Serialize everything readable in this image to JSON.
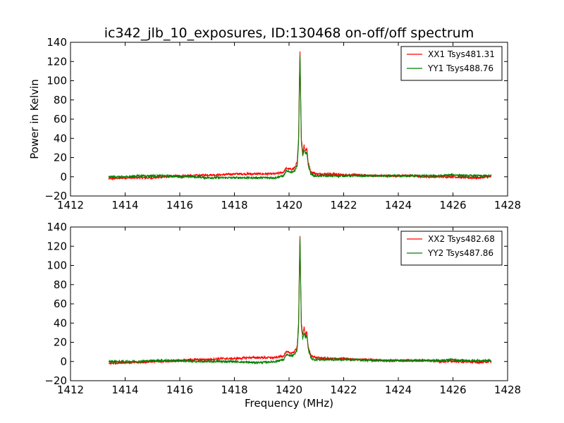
{
  "figure": {
    "title": "ic342_jlb_10_exposures, ID:130468 on-off/off spectrum"
  },
  "chart_data": [
    {
      "type": "line",
      "title": "ic342_jlb_10_exposures, ID:130468 on-off/off spectrum",
      "xlabel": "",
      "ylabel": "Power in Kelvin",
      "xlim": [
        1412,
        1428
      ],
      "ylim": [
        -20,
        140
      ],
      "xticks": [
        "1412",
        "1414",
        "1416",
        "1418",
        "1420",
        "1422",
        "1424",
        "1426",
        "1428"
      ],
      "yticks": [
        "−20",
        "0",
        "20",
        "40",
        "60",
        "80",
        "100",
        "120",
        "140"
      ],
      "grid": false,
      "legend": "top-right",
      "series": [
        {
          "name": "XX1 Tsys481.31",
          "color": "#ff0000",
          "x": [
            1413.4,
            1414.0,
            1414.5,
            1415.0,
            1415.5,
            1416.0,
            1416.5,
            1417.0,
            1417.5,
            1418.0,
            1418.5,
            1419.0,
            1419.5,
            1419.8,
            1419.9,
            1420.0,
            1420.1,
            1420.2,
            1420.3,
            1420.35,
            1420.38,
            1420.4,
            1420.42,
            1420.45,
            1420.5,
            1420.55,
            1420.6,
            1420.65,
            1420.7,
            1420.8,
            1420.9,
            1421.0,
            1421.5,
            1422.0,
            1422.5,
            1423.0,
            1423.5,
            1424.0,
            1424.5,
            1425.0,
            1425.5,
            1426.0,
            1426.5,
            1427.0,
            1427.4
          ],
          "y": [
            -2,
            -1,
            -1,
            -1,
            0,
            1,
            1,
            2,
            2,
            3,
            3,
            3,
            3,
            5,
            9,
            8,
            8,
            9,
            15,
            40,
            100,
            132,
            95,
            40,
            25,
            33,
            27,
            30,
            15,
            5,
            4,
            3,
            3,
            2,
            2,
            1,
            1,
            1,
            1,
            0,
            0,
            0,
            -1,
            -1,
            0
          ]
        },
        {
          "name": "YY1 Tsys488.76",
          "color": "#008000",
          "x": [
            1413.4,
            1414.0,
            1414.5,
            1415.0,
            1415.5,
            1416.0,
            1416.5,
            1417.0,
            1417.5,
            1418.0,
            1418.5,
            1419.0,
            1419.5,
            1419.8,
            1419.9,
            1420.0,
            1420.1,
            1420.2,
            1420.3,
            1420.35,
            1420.38,
            1420.4,
            1420.42,
            1420.45,
            1420.5,
            1420.55,
            1420.6,
            1420.65,
            1420.7,
            1420.8,
            1420.9,
            1421.0,
            1421.5,
            1422.0,
            1422.5,
            1423.0,
            1423.5,
            1424.0,
            1424.5,
            1425.0,
            1425.5,
            1426.0,
            1426.5,
            1427.0,
            1427.4
          ],
          "y": [
            0,
            0,
            1,
            1,
            1,
            0,
            0,
            -1,
            -1,
            -1,
            -1,
            -1,
            -1,
            1,
            6,
            5,
            5,
            6,
            12,
            35,
            95,
            127,
            90,
            35,
            22,
            28,
            23,
            26,
            12,
            3,
            1,
            1,
            1,
            1,
            1,
            1,
            1,
            1,
            1,
            1,
            1,
            2,
            1,
            1,
            1
          ]
        }
      ]
    },
    {
      "type": "line",
      "title": "",
      "xlabel": "Frequency (MHz)",
      "ylabel": "",
      "xlim": [
        1412,
        1428
      ],
      "ylim": [
        -20,
        140
      ],
      "xticks": [
        "1412",
        "1414",
        "1416",
        "1418",
        "1420",
        "1422",
        "1424",
        "1426",
        "1428"
      ],
      "yticks": [
        "−20",
        "0",
        "20",
        "40",
        "60",
        "80",
        "100",
        "120",
        "140"
      ],
      "grid": false,
      "legend": "top-right",
      "series": [
        {
          "name": "XX2 Tsys482.68",
          "color": "#ff0000",
          "x": [
            1413.4,
            1414.0,
            1414.5,
            1415.0,
            1415.5,
            1416.0,
            1416.5,
            1417.0,
            1417.5,
            1418.0,
            1418.5,
            1419.0,
            1419.5,
            1419.8,
            1419.9,
            1420.0,
            1420.1,
            1420.2,
            1420.3,
            1420.35,
            1420.38,
            1420.4,
            1420.42,
            1420.45,
            1420.5,
            1420.55,
            1420.6,
            1420.65,
            1420.7,
            1420.8,
            1420.9,
            1421.0,
            1421.5,
            1422.0,
            1422.5,
            1423.0,
            1423.5,
            1424.0,
            1424.5,
            1425.0,
            1425.5,
            1426.0,
            1426.5,
            1427.0,
            1427.4
          ],
          "y": [
            -2,
            -1,
            -1,
            0,
            0,
            1,
            2,
            2,
            3,
            3,
            4,
            4,
            4,
            6,
            10,
            9,
            9,
            10,
            16,
            40,
            100,
            132,
            95,
            40,
            27,
            35,
            28,
            31,
            15,
            6,
            5,
            4,
            3,
            3,
            2,
            2,
            1,
            1,
            1,
            1,
            0,
            0,
            0,
            -1,
            0
          ]
        },
        {
          "name": "YY2 Tsys487.86",
          "color": "#008000",
          "x": [
            1413.4,
            1414.0,
            1414.5,
            1415.0,
            1415.5,
            1416.0,
            1416.5,
            1417.0,
            1417.5,
            1418.0,
            1418.5,
            1419.0,
            1419.5,
            1419.8,
            1419.9,
            1420.0,
            1420.1,
            1420.2,
            1420.3,
            1420.35,
            1420.38,
            1420.4,
            1420.42,
            1420.45,
            1420.5,
            1420.55,
            1420.6,
            1420.65,
            1420.7,
            1420.8,
            1420.9,
            1421.0,
            1421.5,
            1422.0,
            1422.5,
            1423.0,
            1423.5,
            1424.0,
            1424.5,
            1425.0,
            1425.5,
            1426.0,
            1426.5,
            1427.0,
            1427.4
          ],
          "y": [
            0,
            0,
            0,
            1,
            1,
            1,
            0,
            0,
            0,
            0,
            -1,
            -1,
            0,
            2,
            7,
            6,
            6,
            7,
            13,
            36,
            95,
            127,
            90,
            36,
            24,
            30,
            25,
            28,
            13,
            4,
            2,
            2,
            2,
            2,
            2,
            1,
            1,
            1,
            1,
            1,
            1,
            2,
            1,
            1,
            1
          ]
        }
      ]
    }
  ]
}
